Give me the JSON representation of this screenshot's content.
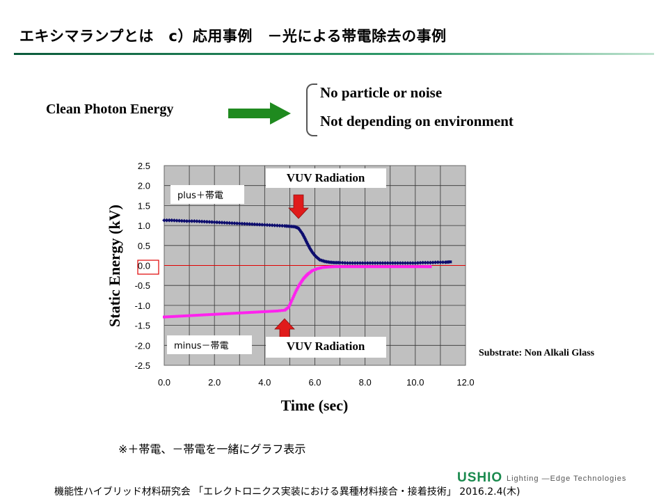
{
  "slide": {
    "title": "エキシマランプとは　c）応用事例　－光による帯電除去の事例",
    "clean_label": "Clean Photon Energy",
    "bullets": [
      "No particle or noise",
      "Not depending on environment"
    ],
    "substrate": "Substrate: Non Alkali Glass",
    "note": "※＋帯電、－帯電を一緒にグラフ表示",
    "logo": "USHIO",
    "tagline": "Lighting —Edge Technologies",
    "footer": "機能性ハイブリッド材料研究会 「エレクトロニクス実装における異種材料接合・接着技術」 2016.2.4(木)"
  },
  "colors": {
    "accent_green": "#1a8a4e",
    "arrow_green": "#1f8a1f",
    "plus_series": "#0d0d6e",
    "minus_series": "#ff22ee",
    "zero_line": "#e00000",
    "callout_arrow": "#e01b1b",
    "plot_bg": "#c0c0c0"
  },
  "icons": {
    "clean_arrow": "green-right-arrow-icon",
    "vuv_arrow_top": "red-down-arrow-icon",
    "vuv_arrow_bottom": "red-up-arrow-icon"
  },
  "chart_data": {
    "type": "scatter",
    "xlabel": "Time (sec)",
    "ylabel": "Static Energy (kV)",
    "xlim": [
      0,
      12
    ],
    "ylim": [
      -2.5,
      2.5
    ],
    "xticks": [
      "0.0",
      "2.0",
      "4.0",
      "6.0",
      "8.0",
      "10.0",
      "12.0"
    ],
    "yticks": [
      "2.5",
      "2.0",
      "1.5",
      "1.0",
      "0.5",
      "0.0",
      "-0.5",
      "-1.0",
      "-1.5",
      "-2.0",
      "-2.5"
    ],
    "grid": true,
    "annotations": [
      "VUV Radiation",
      "VUV Radiation"
    ],
    "series": [
      {
        "name": "plus＋帯電",
        "x": [
          0.0,
          0.3,
          0.6,
          0.9,
          1.2,
          1.5,
          1.8,
          2.1,
          2.4,
          2.7,
          3.0,
          3.3,
          3.6,
          3.9,
          4.2,
          4.5,
          4.8,
          5.0,
          5.2,
          5.35,
          5.5,
          5.6,
          5.7,
          5.8,
          5.9,
          6.0,
          6.1,
          6.2,
          6.4,
          6.6,
          6.8,
          7.0,
          7.3,
          7.6,
          7.9,
          8.2,
          8.5,
          8.8,
          9.1,
          9.4,
          9.7,
          10.0,
          10.3,
          10.6,
          10.9,
          11.2,
          11.4
        ],
        "y": [
          1.13,
          1.13,
          1.12,
          1.11,
          1.11,
          1.1,
          1.09,
          1.08,
          1.07,
          1.06,
          1.05,
          1.04,
          1.03,
          1.02,
          1.01,
          1.0,
          0.99,
          0.98,
          0.97,
          0.93,
          0.8,
          0.68,
          0.55,
          0.43,
          0.33,
          0.25,
          0.19,
          0.14,
          0.1,
          0.08,
          0.07,
          0.07,
          0.06,
          0.06,
          0.06,
          0.06,
          0.06,
          0.06,
          0.06,
          0.06,
          0.06,
          0.06,
          0.07,
          0.07,
          0.08,
          0.08,
          0.09
        ]
      },
      {
        "name": "minus－帯電",
        "x": [
          0.0,
          0.3,
          0.6,
          0.9,
          1.2,
          1.5,
          1.8,
          2.1,
          2.4,
          2.7,
          3.0,
          3.3,
          3.6,
          3.9,
          4.2,
          4.5,
          4.8,
          4.95,
          5.05,
          5.15,
          5.25,
          5.35,
          5.45,
          5.55,
          5.65,
          5.75,
          5.9,
          6.1,
          6.3,
          6.5,
          6.8,
          7.1,
          7.4,
          7.7,
          8.0,
          8.3,
          8.6,
          8.9,
          9.2,
          9.5,
          9.8,
          10.1,
          10.4,
          10.6
        ],
        "y": [
          -1.29,
          -1.28,
          -1.27,
          -1.26,
          -1.25,
          -1.24,
          -1.23,
          -1.22,
          -1.21,
          -1.2,
          -1.19,
          -1.18,
          -1.17,
          -1.16,
          -1.15,
          -1.14,
          -1.12,
          -1.05,
          -0.92,
          -0.78,
          -0.64,
          -0.52,
          -0.42,
          -0.33,
          -0.26,
          -0.2,
          -0.13,
          -0.08,
          -0.05,
          -0.04,
          -0.03,
          -0.03,
          -0.03,
          -0.03,
          -0.03,
          -0.03,
          -0.03,
          -0.03,
          -0.03,
          -0.03,
          -0.03,
          -0.03,
          -0.03,
          -0.03
        ]
      }
    ]
  }
}
